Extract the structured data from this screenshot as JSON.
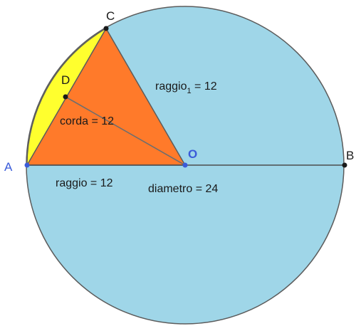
{
  "points": {
    "A": "A",
    "B": "B",
    "C": "C",
    "D": "D",
    "O": "O"
  },
  "labels": {
    "raggio1_text": "raggio",
    "raggio1_sub": "1",
    "raggio1_value": " = 12",
    "corda": "corda = 12",
    "raggio": "raggio = 12",
    "diametro": "diametro = 24"
  },
  "colors": {
    "circle_fill": "#9fd6e8",
    "triangle_fill": "#ff7a2a",
    "segment_fill": "#ffff2e",
    "stroke": "#5c5c5c",
    "point_label": "#3a5bd9",
    "point_label_dark": "#1a1a1a"
  }
}
